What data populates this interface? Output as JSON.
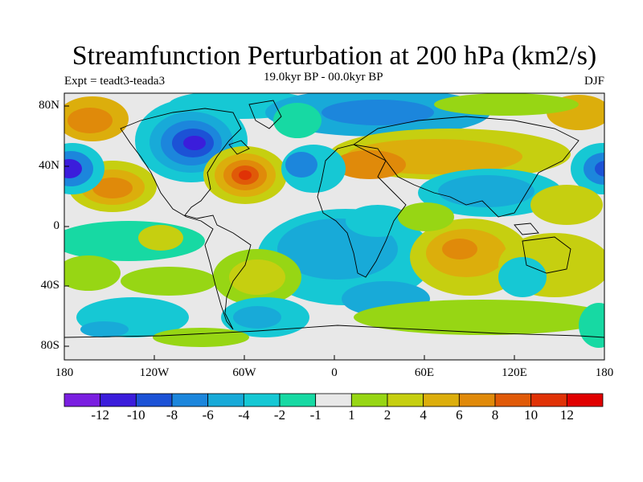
{
  "title": "Streamfunction Perturbation at 200 hPa (km2/s)",
  "subtitle_left": "Expt = teadt3-teada3",
  "subtitle_center": "19.0kyr BP - 00.0kyr BP",
  "subtitle_right": "DJF",
  "lat_labels": [
    "80N",
    "40N",
    "0",
    "40S",
    "80S"
  ],
  "lon_labels": [
    "180",
    "120W",
    "60W",
    "0",
    "60E",
    "120E",
    "180"
  ],
  "colorbar": {
    "labels": [
      "-12",
      "-10",
      "-8",
      "-6",
      "-4",
      "-2",
      "-1",
      "1",
      "2",
      "4",
      "6",
      "8",
      "10",
      "12"
    ],
    "colors": [
      "#7a1fe0",
      "#3b1ddb",
      "#1c52d6",
      "#1c86dc",
      "#18aad8",
      "#16c8d4",
      "#17d9a3",
      "#e8e8e8",
      "#97d614",
      "#c6cf10",
      "#dcae0c",
      "#e08a0a",
      "#e05a08",
      "#e03206",
      "#e00000"
    ]
  },
  "chart_data": {
    "type": "heatmap",
    "x_range": [
      -180,
      180
    ],
    "y_range": [
      -90,
      90
    ],
    "units": "km2/s",
    "levels": [
      -12,
      -10,
      -8,
      -6,
      -4,
      -2,
      -1,
      1,
      2,
      4,
      6,
      8,
      10,
      12
    ],
    "features": [
      {
        "lon": -95,
        "lat": 58,
        "value": -10
      },
      {
        "lon": -60,
        "lat": 35,
        "value": 11
      },
      {
        "lon": -150,
        "lat": 25,
        "value": 6
      },
      {
        "lon": -178,
        "lat": 38,
        "value": -10
      },
      {
        "lon": 178,
        "lat": 38,
        "value": -10
      },
      {
        "lon": -160,
        "lat": 75,
        "value": 5
      },
      {
        "lon": 40,
        "lat": 45,
        "value": 7
      },
      {
        "lon": 85,
        "lat": -15,
        "value": 5
      },
      {
        "lon": 110,
        "lat": 35,
        "value": -5
      },
      {
        "lon": 15,
        "lat": 75,
        "value": -4
      },
      {
        "lon": -25,
        "lat": 30,
        "value": -4
      },
      {
        "lon": 0,
        "lat": -35,
        "value": -3
      },
      {
        "lon": -40,
        "lat": -55,
        "value": -3
      }
    ]
  }
}
